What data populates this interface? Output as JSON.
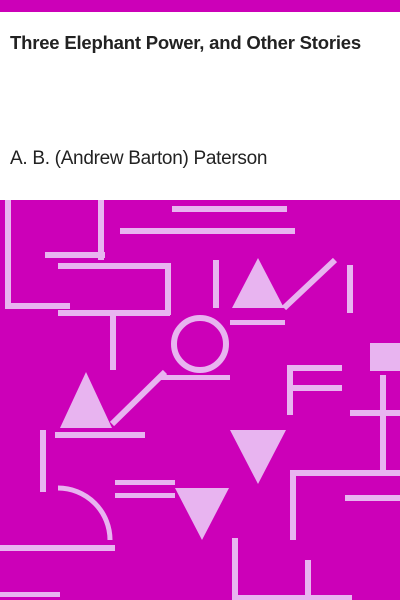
{
  "cover": {
    "title": "Three Elephant Power, and Other Stories",
    "author": "A. B. (Andrew Barton) Paterson",
    "colors": {
      "background": "#ffffff",
      "accent": "#cc00b8",
      "pattern_light": "#e8b4f0",
      "text": "#222222"
    }
  }
}
